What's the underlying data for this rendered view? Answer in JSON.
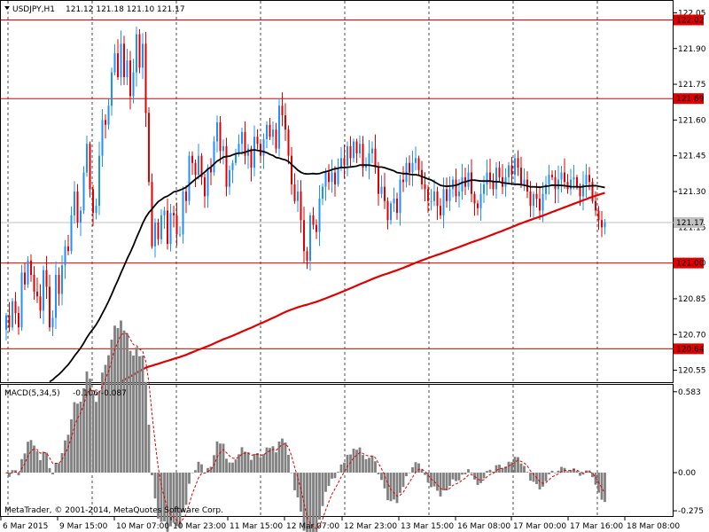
{
  "header": {
    "symbol": "USDJPY,H1",
    "ohlc": "121.12 121.18 121.10 121.17"
  },
  "macd_header": {
    "name": "MACD(5,34,5)",
    "values": "-0.106 -0.087"
  },
  "copyright": "MetaTrader, © 2001-2014, MetaQuotes Software Corp.",
  "colors": {
    "bull": "#1e90ff",
    "bear": "#e00000",
    "ma_fast": "#000000",
    "ma_slow": "#e00000",
    "hline": "#e00000",
    "macd_hist": "#808080",
    "macd_signal": "#e00000",
    "badge_red": "#e00000",
    "badge_grey": "#c0c0c0"
  },
  "chart_data": [
    {
      "type": "candlestick",
      "title": "USDJPY,H1",
      "timeframe": "H1",
      "ylim": [
        120.5,
        122.1
      ],
      "price_ticks": [
        "122.05",
        "121.90",
        "121.75",
        "121.60",
        "121.45",
        "121.30",
        "121.15",
        "121.00",
        "120.85",
        "120.70",
        "120.55"
      ],
      "time_labels": [
        "6 Mar 2015",
        "9 Mar 15:00",
        "10 Mar 07:00",
        "10 Mar 23:00",
        "11 Mar 15:00",
        "12 Mar 07:00",
        "12 Mar 23:00",
        "13 Mar 15:00",
        "16 Mar 08:00",
        "17 Mar 00:00",
        "17 Mar 16:00",
        "18 Mar 08:00"
      ],
      "horizontal_lines": [
        {
          "value": 122.02,
          "label": "122.02"
        },
        {
          "value": 121.69,
          "label": "121.69"
        },
        {
          "value": 121.0,
          "label": "121.00"
        },
        {
          "value": 120.64,
          "label": "120.64"
        }
      ],
      "current_price": {
        "value": 121.17,
        "label": "121.17"
      },
      "closes": [
        120.78,
        120.73,
        120.84,
        120.79,
        120.73,
        120.96,
        120.91,
        121.01,
        120.95,
        120.88,
        120.86,
        120.8,
        120.97,
        120.9,
        120.73,
        120.77,
        120.95,
        120.87,
        120.99,
        121.07,
        121.05,
        121.2,
        121.3,
        121.17,
        121.22,
        121.38,
        121.5,
        121.31,
        121.21,
        121.24,
        121.45,
        121.6,
        121.58,
        121.66,
        121.8,
        121.88,
        121.78,
        121.92,
        121.78,
        121.85,
        121.7,
        121.8,
        121.96,
        121.82,
        121.92,
        121.63,
        121.34,
        121.07,
        121.17,
        121.1,
        121.2,
        121.22,
        121.08,
        121.21,
        121.2,
        121.12,
        121.12,
        121.3,
        121.26,
        121.45,
        121.42,
        121.37,
        121.45,
        121.36,
        121.28,
        121.4,
        121.38,
        121.51,
        121.59,
        121.47,
        121.49,
        121.32,
        121.39,
        121.42,
        121.46,
        121.5,
        121.55,
        121.45,
        121.48,
        121.4,
        121.53,
        121.5,
        121.45,
        121.52,
        121.58,
        121.53,
        121.56,
        121.48,
        121.66,
        121.62,
        121.56,
        121.45,
        121.33,
        121.26,
        121.3,
        121.18,
        121.05,
        121.01,
        121.2,
        121.16,
        121.13,
        121.27,
        121.32,
        121.38,
        121.34,
        121.38,
        121.33,
        121.4,
        121.44,
        121.41,
        121.49,
        121.44,
        121.51,
        121.46,
        121.5,
        121.4,
        121.41,
        121.46,
        121.48,
        121.4,
        121.29,
        121.32,
        121.26,
        121.18,
        121.25,
        121.27,
        121.21,
        121.35,
        121.34,
        121.42,
        121.38,
        121.42,
        121.44,
        121.39,
        121.33,
        121.31,
        121.26,
        121.26,
        121.3,
        121.24,
        121.2,
        121.31,
        121.26,
        121.31,
        121.35,
        121.28,
        121.3,
        121.36,
        121.32,
        121.38,
        121.29,
        121.25,
        121.23,
        121.29,
        121.33,
        121.38,
        121.34,
        121.31,
        121.4,
        121.36,
        121.32,
        121.36,
        121.41,
        121.37,
        121.44,
        121.4,
        121.33,
        121.35,
        121.3,
        121.24,
        121.29,
        121.27,
        121.22,
        121.29,
        121.33,
        121.37,
        121.36,
        121.31,
        121.35,
        121.38,
        121.34,
        121.31,
        121.35,
        121.36,
        121.32,
        121.28,
        121.33,
        121.37,
        121.34,
        121.26,
        121.22,
        121.18,
        121.15,
        121.17
      ]
    },
    {
      "type": "histogram",
      "title": "MACD(5,34,5)",
      "ylim": [
        -0.3,
        0.62
      ],
      "ticks": [
        "0.583",
        "0.00",
        "-0.275"
      ],
      "values": "derived from closes (fast 5, slow 34, signal 5)"
    }
  ]
}
